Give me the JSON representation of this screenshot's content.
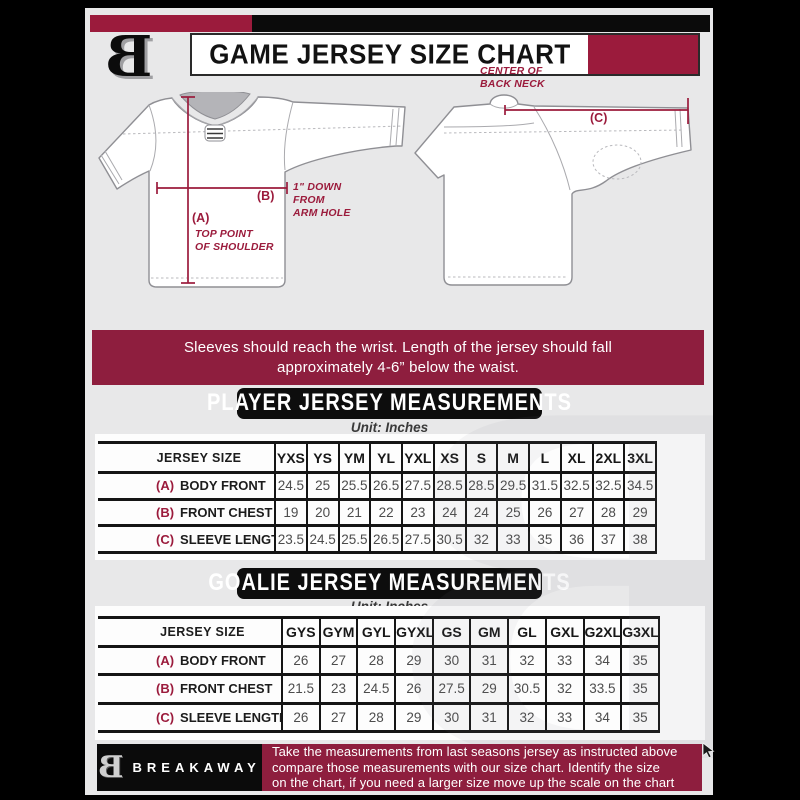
{
  "colors": {
    "maroon_dark": "#8e1e3e",
    "maroon_bright": "#9b1b3c",
    "black": "#0b0b0b",
    "background_gray": "#e8e8e9"
  },
  "header": {
    "title": "GAME JERSEY SIZE CHART",
    "logo_letter": "B"
  },
  "diagram": {
    "front": {
      "a_label": "(A)",
      "a_note_line1": "TOP POINT",
      "a_note_line2": "OF SHOULDER",
      "b_label": "(B)",
      "b_note_line1": "1\" DOWN",
      "b_note_line2": "FROM",
      "b_note_line3": "ARM HOLE"
    },
    "back": {
      "c_label": "(C)",
      "neck_note_line1": "CENTER OF",
      "neck_note_line2": "BACK NECK"
    }
  },
  "banner": {
    "line1": "Sleeves should reach the wrist. Length of the jersey should fall",
    "line2": "approximately 4-6” below the waist."
  },
  "player_section": {
    "title": "PLAYER JERSEY MEASUREMENTS",
    "unit": "Unit: Inches",
    "table": {
      "corner": "JERSEY SIZE",
      "sizes": [
        "YXS",
        "YS",
        "YM",
        "YL",
        "YXL",
        "XS",
        "S",
        "M",
        "L",
        "XL",
        "2XL",
        "3XL"
      ],
      "rows": [
        {
          "key": "(A)",
          "label": "BODY FRONT",
          "values": [
            "24.5",
            "25",
            "25.5",
            "26.5",
            "27.5",
            "28.5",
            "28.5",
            "29.5",
            "31.5",
            "32.5",
            "32.5",
            "34.5"
          ]
        },
        {
          "key": "(B)",
          "label": "FRONT CHEST",
          "values": [
            "19",
            "20",
            "21",
            "22",
            "23",
            "24",
            "24",
            "25",
            "26",
            "27",
            "28",
            "29"
          ]
        },
        {
          "key": "(C)",
          "label": "SLEEVE LENGTH",
          "values": [
            "23.5",
            "24.5",
            "25.5",
            "26.5",
            "27.5",
            "30.5",
            "32",
            "33",
            "35",
            "36",
            "37",
            "38"
          ]
        }
      ]
    }
  },
  "goalie_section": {
    "title": "GOALIE JERSEY MEASUREMENTS",
    "unit": "Unit: Inches",
    "table": {
      "corner": "JERSEY SIZE",
      "sizes": [
        "GYS",
        "GYM",
        "GYL",
        "GYXL",
        "GS",
        "GM",
        "GL",
        "GXL",
        "G2XL",
        "G3XL"
      ],
      "rows": [
        {
          "key": "(A)",
          "label": "BODY FRONT",
          "values": [
            "26",
            "27",
            "28",
            "29",
            "30",
            "31",
            "32",
            "33",
            "34",
            "35"
          ]
        },
        {
          "key": "(B)",
          "label": "FRONT CHEST",
          "values": [
            "21.5",
            "23",
            "24.5",
            "26",
            "27.5",
            "29",
            "30.5",
            "32",
            "33.5",
            "35"
          ]
        },
        {
          "key": "(C)",
          "label": "SLEEVE LENGTH",
          "values": [
            "26",
            "27",
            "28",
            "29",
            "30",
            "31",
            "32",
            "33",
            "34",
            "35"
          ]
        }
      ]
    }
  },
  "footer": {
    "logo_letter": "B",
    "brand": "BREAKAWAY",
    "lines": [
      "Take the measurements from last seasons jersey as instructed above",
      "compare those measurements  with our size chart. Identify the size",
      "on the chart, if you need a larger size move up the scale on the chart"
    ]
  }
}
